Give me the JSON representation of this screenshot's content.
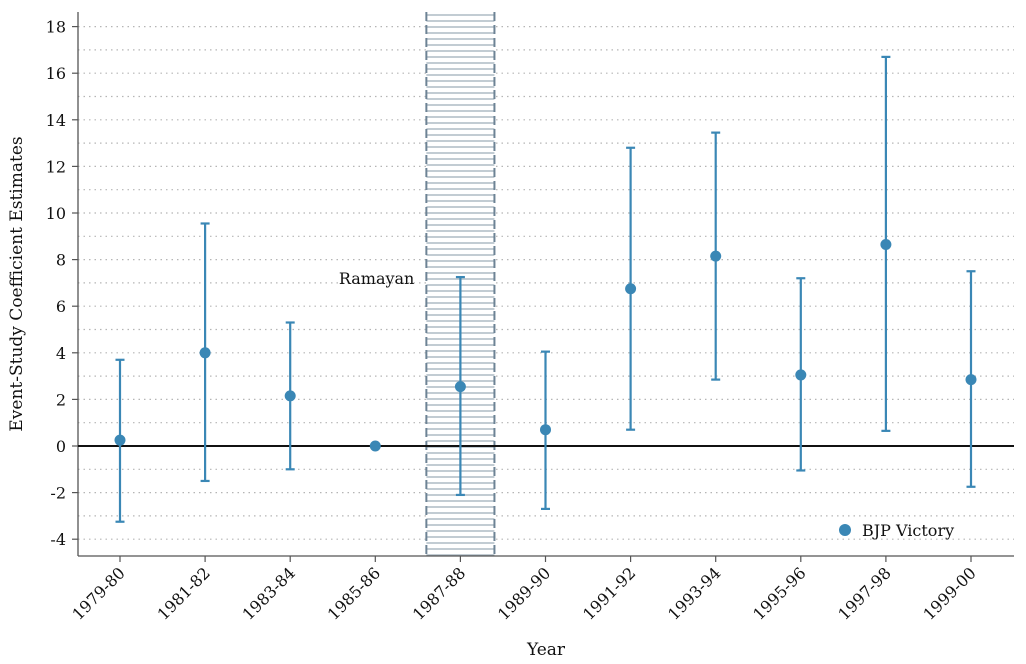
{
  "chart_data": {
    "type": "scatter",
    "title": "",
    "xlabel": "Year",
    "ylabel": "Event-Study Coefficient Estimates",
    "categories": [
      "1979-80",
      "1981-82",
      "1983-84",
      "1985-86",
      "1987-88",
      "1989-90",
      "1991-92",
      "1993-94",
      "1995-96",
      "1997-98",
      "1999-00"
    ],
    "series": [
      {
        "name": "BJP Victory",
        "color": "#3a87b5",
        "values": [
          0.25,
          4.0,
          2.15,
          0.0,
          2.55,
          0.7,
          6.75,
          8.15,
          3.05,
          8.65,
          2.85
        ],
        "ci_low": [
          -3.25,
          -1.5,
          -1.0,
          null,
          -2.1,
          -2.7,
          0.7,
          2.85,
          -1.05,
          0.65,
          -1.75
        ],
        "ci_high": [
          3.7,
          9.55,
          5.3,
          null,
          7.25,
          4.05,
          12.8,
          13.45,
          7.2,
          16.7,
          7.5
        ]
      }
    ],
    "yticks": [
      "18",
      "16",
      "14",
      "12",
      "10",
      "8",
      "6",
      "4",
      "2",
      "0",
      "-2",
      "-4"
    ],
    "ylim": [
      -4.7,
      18.7
    ],
    "grid": true,
    "zero_line": true,
    "legend": {
      "position": "bottom-right",
      "label": "BJP Victory"
    },
    "annotations": [
      {
        "text": "Ramayan",
        "x_span": [
          "1986-87",
          "1988-89"
        ],
        "shading": "hatched"
      }
    ]
  }
}
